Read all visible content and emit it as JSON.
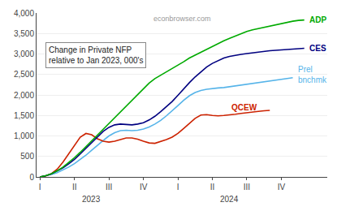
{
  "chart_data": {
    "type": "line",
    "title": "econbrowser.com",
    "series": [
      {
        "name": "Prel bnchmk",
        "color": "#56b4e9",
        "x": [
          0,
          0.5,
          1,
          1.5,
          2,
          2.5,
          3,
          3.5,
          4,
          4.5,
          5,
          5.5,
          6,
          6.5,
          7,
          7.5,
          8,
          8.5,
          9,
          9.5,
          10,
          10.5,
          11,
          11.5,
          12,
          12.5,
          13,
          13.5,
          14,
          14.5,
          15,
          15.5,
          16,
          16.5,
          17,
          17.5,
          18,
          18.5,
          19,
          19.5,
          20,
          20.5,
          21,
          21.5,
          22
        ],
        "values": [
          0,
          25,
          60,
          105,
          165,
          240,
          325,
          420,
          530,
          650,
          775,
          890,
          1000,
          1080,
          1130,
          1140,
          1130,
          1140,
          1170,
          1220,
          1290,
          1380,
          1490,
          1610,
          1740,
          1870,
          1980,
          2060,
          2110,
          2140,
          2160,
          2170,
          2180,
          2200,
          2220,
          2240,
          2260,
          2280,
          2300,
          2320,
          2340,
          2360,
          2380,
          2400,
          2420
        ]
      },
      {
        "name": "QCEW",
        "color": "#cc2200",
        "x": [
          0,
          0.5,
          1,
          1.5,
          2,
          2.5,
          3,
          3.5,
          4,
          4.5,
          5,
          5.5,
          6,
          6.5,
          7,
          7.5,
          8,
          8.5,
          9,
          9.5,
          10,
          10.5,
          11,
          11.5,
          12,
          12.5,
          13,
          13.5,
          14,
          14.5,
          15,
          15.5,
          16,
          16.5,
          17,
          17.5,
          18,
          18.5,
          19,
          19.5,
          20
        ],
        "values": [
          0,
          25,
          80,
          190,
          360,
          560,
          760,
          970,
          1060,
          1030,
          930,
          870,
          850,
          870,
          910,
          950,
          950,
          920,
          870,
          830,
          820,
          860,
          910,
          970,
          1060,
          1180,
          1310,
          1430,
          1510,
          1520,
          1500,
          1490,
          1500,
          1510,
          1530,
          1550,
          1570,
          1590,
          1600,
          1615,
          1625
        ]
      },
      {
        "name": "CES",
        "color": "#000080",
        "x": [
          0,
          0.5,
          1,
          1.5,
          2,
          2.5,
          3,
          3.5,
          4,
          4.5,
          5,
          5.5,
          6,
          6.5,
          7,
          7.5,
          8,
          8.5,
          9,
          9.5,
          10,
          10.5,
          11,
          11.5,
          12,
          12.5,
          13,
          13.5,
          14,
          14.5,
          15,
          15.5,
          16,
          16.5,
          17,
          17.5,
          18,
          18.5,
          19,
          19.5,
          20,
          20.5,
          21,
          21.5,
          22,
          22.5,
          23
        ],
        "values": [
          0,
          30,
          75,
          140,
          220,
          320,
          430,
          560,
          700,
          850,
          990,
          1110,
          1210,
          1270,
          1290,
          1280,
          1270,
          1290,
          1320,
          1390,
          1480,
          1590,
          1710,
          1840,
          1990,
          2150,
          2300,
          2440,
          2570,
          2680,
          2770,
          2840,
          2900,
          2940,
          2970,
          2990,
          3010,
          3030,
          3050,
          3060,
          3080,
          3090,
          3100,
          3110,
          3120,
          3130,
          3140
        ]
      },
      {
        "name": "ADP",
        "color": "#00aa00",
        "x": [
          0,
          0.5,
          1,
          1.5,
          2,
          2.5,
          3,
          3.5,
          4,
          4.5,
          5,
          5.5,
          6,
          6.5,
          7,
          7.5,
          8,
          8.5,
          9,
          9.5,
          10,
          10.5,
          11,
          11.5,
          12,
          12.5,
          13,
          13.5,
          14,
          14.5,
          15,
          15.5,
          16,
          16.5,
          17,
          17.5,
          18,
          18.5,
          19,
          19.5,
          20,
          20.5,
          21,
          21.5,
          22,
          22.5,
          23
        ],
        "values": [
          0,
          30,
          80,
          150,
          240,
          350,
          470,
          600,
          740,
          890,
          1030,
          1170,
          1300,
          1440,
          1580,
          1720,
          1860,
          2000,
          2150,
          2290,
          2400,
          2480,
          2560,
          2650,
          2730,
          2810,
          2900,
          2970,
          3050,
          3120,
          3190,
          3260,
          3320,
          3380,
          3440,
          3500,
          3550,
          3590,
          3620,
          3650,
          3690,
          3720,
          3750,
          3780,
          3800,
          3820,
          3830
        ]
      }
    ],
    "annotations": [
      {
        "text": "ADP",
        "x": 23.3,
        "y": 3830
      },
      {
        "text": "CES",
        "x": 23.3,
        "y": 3140
      },
      {
        "text": "Prel\nbnchmk",
        "x": 22.3,
        "y": 2500
      },
      {
        "text": "QCEW",
        "x": 16.5,
        "y": 1700
      },
      {
        "text": "2023",
        "x": 4.5
      },
      {
        "text": "2024",
        "x": 16.5
      },
      {
        "text": "Change in Private NFP\nrelative to Jan 2023, 000's"
      }
    ],
    "xlim": [
      -0.3,
      25.0
    ],
    "xticks": [
      {
        "value": 0,
        "label": "I"
      },
      {
        "value": 3,
        "label": "II"
      },
      {
        "value": 6,
        "label": "III"
      },
      {
        "value": 9,
        "label": "IV"
      },
      {
        "value": 12,
        "label": "I"
      },
      {
        "value": 15,
        "label": "II"
      },
      {
        "value": 18,
        "label": "III"
      },
      {
        "value": 21,
        "label": "IV"
      }
    ],
    "ylim": [
      0,
      4000
    ],
    "yticks": [
      0,
      500,
      {
        "value": 1000,
        "label": "1,000"
      },
      {
        "value": 1500,
        "label": "1,500"
      },
      {
        "value": 2000,
        "label": "2,000"
      },
      {
        "value": 2500,
        "label": "2,500"
      },
      {
        "value": 3000,
        "label": "3,000"
      },
      {
        "value": 3500,
        "label": "3,500"
      },
      {
        "value": 4000,
        "label": "4,000"
      }
    ],
    "grid": "y"
  }
}
